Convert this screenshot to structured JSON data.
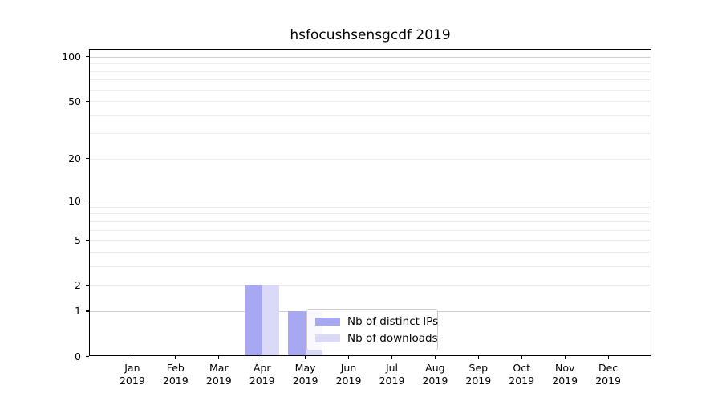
{
  "chart_data": {
    "type": "bar",
    "title": "hsfocushsensgcdf 2019",
    "categories": [
      "Jan",
      "Feb",
      "Mar",
      "Apr",
      "May",
      "Jun",
      "Jul",
      "Aug",
      "Sep",
      "Oct",
      "Nov",
      "Dec"
    ],
    "category_year": "2019",
    "series": [
      {
        "name": "Nb of distinct IPs",
        "color": "#a8a8f2",
        "values": [
          0,
          0,
          0,
          2,
          1,
          0,
          0,
          0,
          0,
          0,
          0,
          0
        ]
      },
      {
        "name": "Nb of downloads",
        "color": "#dadaf8",
        "values": [
          0,
          0,
          0,
          2,
          1,
          0,
          0,
          0,
          0,
          0,
          0,
          0
        ]
      }
    ],
    "y_axis": {
      "scale": "log1p",
      "ticks": [
        0,
        1,
        2,
        5,
        10,
        20,
        50,
        100
      ],
      "max": 113
    },
    "gridlines": {
      "major": [
        1,
        10,
        100
      ],
      "minor": [
        2,
        3,
        4,
        5,
        6,
        7,
        8,
        9,
        20,
        30,
        40,
        50,
        60,
        70,
        80,
        90
      ]
    },
    "legend": {
      "position": "lower-center-inside",
      "entries": [
        "Nb of distinct IPs",
        "Nb of downloads"
      ]
    }
  },
  "colors": {
    "background": "#ffffff",
    "spine": "#000000",
    "grid_major": "#cfcfcf",
    "grid_minor": "#ececec",
    "series_1": "#a8a8f2",
    "series_2": "#dadaf8"
  }
}
